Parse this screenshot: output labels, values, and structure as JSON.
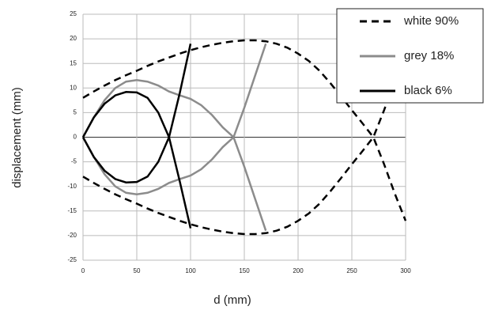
{
  "chart_data": {
    "type": "line",
    "x_label": "d (mm)",
    "y_label": "displacement (mm)",
    "x": [
      0,
      10,
      20,
      30,
      40,
      50,
      60,
      70,
      80,
      90,
      100,
      110,
      120,
      130,
      140,
      150,
      160,
      170,
      180,
      190,
      200,
      210,
      220,
      230,
      240,
      250,
      260,
      270,
      280,
      290,
      300
    ],
    "series": [
      {
        "name": "white 90%",
        "color": "#000000",
        "dashed": true,
        "values": [
          8,
          9.3,
          10.5,
          11.6,
          12.6,
          13.5,
          14.5,
          15.4,
          16.2,
          17,
          17.7,
          18.3,
          18.8,
          19.2,
          19.5,
          19.7,
          19.7,
          19.5,
          19,
          18.2,
          17,
          15.5,
          13.5,
          11,
          8.3,
          5.5,
          2.8,
          0,
          -5.5,
          -11.5,
          -17
        ],
        "lower_values": [
          -8,
          -9.3,
          -10.5,
          -11.6,
          -12.6,
          -13.5,
          -14.5,
          -15.4,
          -16.2,
          -17,
          -17.7,
          -18.3,
          -18.8,
          -19.2,
          -19.5,
          -19.7,
          -19.7,
          -19.5,
          -19,
          -18.2,
          -17,
          -15.5,
          -13.5,
          -11,
          -8.3,
          -5.5,
          -2.8,
          0,
          5.5,
          11.5,
          17
        ]
      },
      {
        "name": "grey 18%",
        "color": "#8c8c8c",
        "dashed": false,
        "values": [
          0,
          4,
          7.5,
          10,
          11.3,
          11.6,
          11.3,
          10.5,
          9.3,
          8.5,
          7.8,
          6.5,
          4.5,
          2,
          0,
          -6,
          -12.5,
          -19,
          null,
          null,
          null,
          null,
          null,
          null,
          null,
          null,
          null,
          null,
          null,
          null,
          null
        ],
        "lower_values": [
          0,
          -4,
          -7.5,
          -10,
          -11.3,
          -11.6,
          -11.3,
          -10.5,
          -9.3,
          -8.5,
          -7.8,
          -6.5,
          -4.5,
          -2,
          0,
          6,
          12.5,
          19,
          null,
          null,
          null,
          null,
          null,
          null,
          null,
          null,
          null,
          null,
          null,
          null,
          null
        ]
      },
      {
        "name": "black 6%",
        "color": "#000000",
        "dashed": false,
        "values": [
          0,
          4,
          6.8,
          8.5,
          9.2,
          9.1,
          8,
          5,
          0,
          -9,
          -18.5,
          null,
          null,
          null,
          null,
          null,
          null,
          null,
          null,
          null,
          null,
          null,
          null,
          null,
          null,
          null,
          null,
          null,
          null,
          null,
          null
        ],
        "lower_values": [
          0,
          -4,
          -6.8,
          -8.5,
          -9.2,
          -9.1,
          -8,
          -5,
          0,
          9,
          19,
          null,
          null,
          null,
          null,
          null,
          null,
          null,
          null,
          null,
          null,
          null,
          null,
          null,
          null,
          null,
          null,
          null,
          null,
          null,
          null
        ]
      }
    ],
    "xlim": [
      0,
      300
    ],
    "xticks": [
      0,
      50,
      100,
      150,
      200,
      250,
      300
    ],
    "ylim": [
      -25,
      25
    ],
    "yticks": [
      -25,
      -20,
      -15,
      -10,
      -5,
      0,
      5,
      10,
      15,
      20,
      25
    ],
    "grid": true,
    "legend": "top-right"
  }
}
